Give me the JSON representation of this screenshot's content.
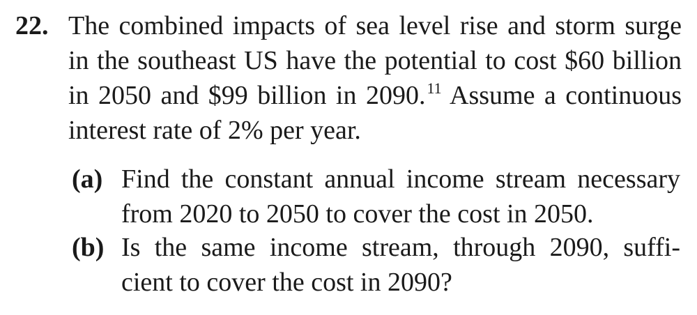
{
  "problem": {
    "number": "22.",
    "stem_lines": [
      "The combined impacts of sea level rise and storm surge",
      "in the southeast US have the potential to cost $60 billion",
      "in 2050 and $99 billion in 2090.",
      "Assume a continuous",
      "interest rate of 2% per year."
    ],
    "footnote_ref": "11",
    "parts": [
      {
        "label": "(a)",
        "lines": [
          "Find the constant annual income stream necessary",
          "from 2020 to 2050 to cover the cost in 2050."
        ]
      },
      {
        "label": "(b)",
        "lines": [
          "Is the same income stream, through 2090, suffi-",
          "cient to cover the cost in 2090?"
        ]
      }
    ]
  }
}
